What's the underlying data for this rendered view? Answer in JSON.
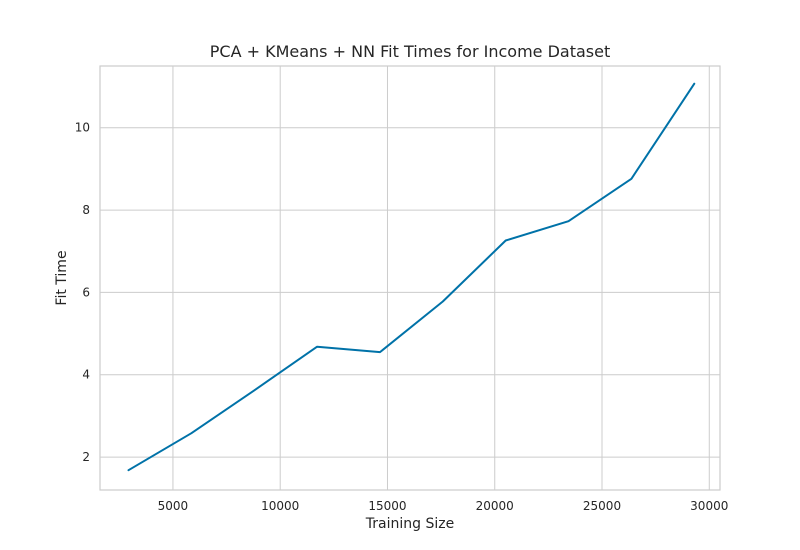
{
  "chart_data": {
    "type": "line",
    "title": "PCA + KMeans + NN Fit Times for Income Dataset",
    "xlabel": "Training Size",
    "ylabel": "Fit Time",
    "xlim": [
      1600,
      30500
    ],
    "ylim": [
      1.2,
      11.5
    ],
    "xticks": [
      5000,
      10000,
      15000,
      20000,
      25000,
      30000
    ],
    "yticks": [
      2,
      4,
      6,
      8,
      10
    ],
    "grid": true,
    "series": [
      {
        "color": "#0072a8",
        "x": [
          2930,
          5860,
          8790,
          11720,
          14650,
          17580,
          20510,
          23440,
          26370,
          29300
        ],
        "y": [
          1.68,
          2.58,
          3.62,
          4.68,
          4.55,
          5.78,
          7.26,
          7.73,
          8.76,
          11.07
        ]
      }
    ]
  }
}
